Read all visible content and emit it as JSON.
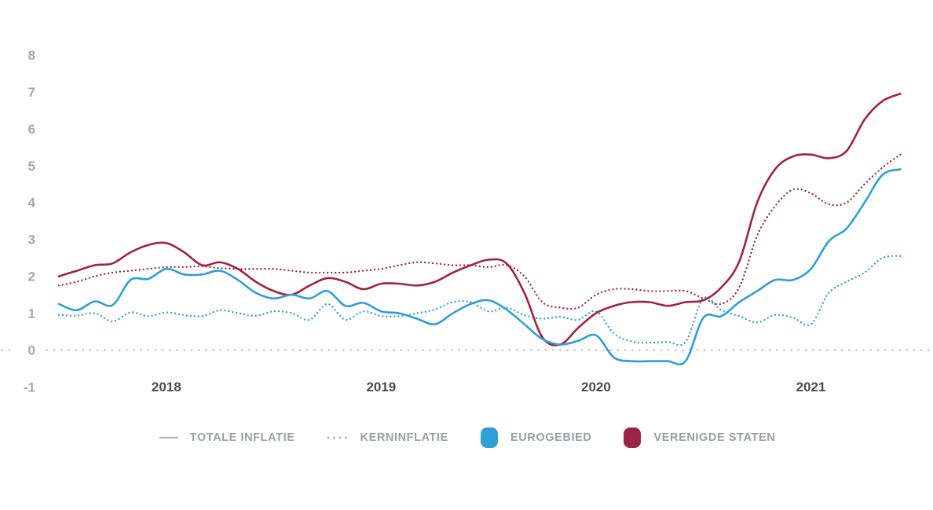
{
  "chart_data": {
    "type": "line",
    "title": "",
    "x_start": "2018-01",
    "x_end": "2021-12",
    "x_interval": "month",
    "x_points": 48,
    "x_tick_labels": [
      "2018",
      "2019",
      "2020",
      "2021"
    ],
    "y_ticks": [
      8,
      7,
      6,
      5,
      4,
      3,
      2,
      1,
      0,
      -1
    ],
    "ylim": [
      -1,
      8
    ],
    "baseline": 0,
    "grid": "zero-line-only",
    "legend_position": "bottom",
    "series": [
      {
        "id": "verenigde-staten-kerninflatie",
        "name": "Verenigde Staten - kerninflatie",
        "style": "dotted",
        "color": "#9E2443",
        "values": [
          1.75,
          1.85,
          2.0,
          2.1,
          2.15,
          2.2,
          2.25,
          2.25,
          2.27,
          2.22,
          2.2,
          2.2,
          2.2,
          2.15,
          2.1,
          2.1,
          2.1,
          2.15,
          2.2,
          2.3,
          2.38,
          2.35,
          2.3,
          2.3,
          2.25,
          2.3,
          2.0,
          1.3,
          1.15,
          1.15,
          1.5,
          1.65,
          1.65,
          1.6,
          1.6,
          1.6,
          1.4,
          1.25,
          1.7,
          3.1,
          3.9,
          4.35,
          4.25,
          3.95,
          4.0,
          4.5,
          4.95,
          5.3
        ]
      },
      {
        "id": "eurogebied-kerninflatie",
        "name": "Eurogebied - kerninflatie",
        "style": "dotted",
        "color": "#2F9FD8",
        "values": [
          0.95,
          0.93,
          1.0,
          0.78,
          1.02,
          0.92,
          1.02,
          0.95,
          0.92,
          1.08,
          1.0,
          0.93,
          1.05,
          1.0,
          0.82,
          1.25,
          0.82,
          1.05,
          0.92,
          0.92,
          1.0,
          1.1,
          1.3,
          1.3,
          1.05,
          1.15,
          0.95,
          0.85,
          0.9,
          0.82,
          1.05,
          0.45,
          0.23,
          0.2,
          0.22,
          0.22,
          1.4,
          1.08,
          0.92,
          0.75,
          0.95,
          0.88,
          0.7,
          1.55,
          1.85,
          2.1,
          2.5,
          2.55
        ]
      },
      {
        "id": "verenigde-staten-totale-inflatie",
        "name": "Verenigde Staten - totale inflatie",
        "style": "solid",
        "color": "#9E2443",
        "values": [
          2.0,
          2.15,
          2.3,
          2.35,
          2.65,
          2.85,
          2.9,
          2.65,
          2.3,
          2.38,
          2.2,
          1.85,
          1.6,
          1.5,
          1.75,
          1.95,
          1.85,
          1.65,
          1.8,
          1.8,
          1.75,
          1.85,
          2.1,
          2.3,
          2.45,
          2.35,
          1.55,
          0.35,
          0.15,
          0.6,
          1.0,
          1.2,
          1.3,
          1.3,
          1.2,
          1.3,
          1.35,
          1.7,
          2.4,
          4.0,
          4.9,
          5.25,
          5.3,
          5.2,
          5.4,
          6.25,
          6.75,
          6.95
        ]
      },
      {
        "id": "eurogebied-totale-inflatie",
        "name": "Eurogebied - totale inflatie",
        "style": "solid",
        "color": "#2F9FD8",
        "values": [
          1.25,
          1.08,
          1.32,
          1.22,
          1.9,
          1.93,
          2.2,
          2.05,
          2.05,
          2.15,
          1.9,
          1.55,
          1.4,
          1.5,
          1.4,
          1.6,
          1.2,
          1.28,
          1.05,
          1.0,
          0.85,
          0.7,
          1.0,
          1.25,
          1.35,
          1.1,
          0.7,
          0.3,
          0.15,
          0.25,
          0.4,
          -0.2,
          -0.3,
          -0.3,
          -0.3,
          -0.3,
          0.88,
          0.92,
          1.3,
          1.6,
          1.9,
          1.9,
          2.2,
          2.95,
          3.3,
          4.0,
          4.75,
          4.9
        ]
      }
    ],
    "colors": {
      "y_tick": "#A7A7A9",
      "x_tick": "#4B4B4F",
      "zero_gridline": "#CBCBCB",
      "eurogebied": "#2F9FD8",
      "verenigde_staten": "#9E2443"
    }
  },
  "legend": {
    "items": [
      {
        "label": "TOTALE INFLATIE",
        "swatch": "solid-line",
        "color": "#B2B5B8"
      },
      {
        "label": "KERNINFLATIE",
        "swatch": "dotted-line",
        "color": "#B2B5B8"
      },
      {
        "label": "EUROGEBIED",
        "swatch": "rounded-square",
        "color": "#2F9FD8"
      },
      {
        "label": "VERENIGDE STATEN",
        "swatch": "rounded-square",
        "color": "#9E2443"
      }
    ]
  }
}
